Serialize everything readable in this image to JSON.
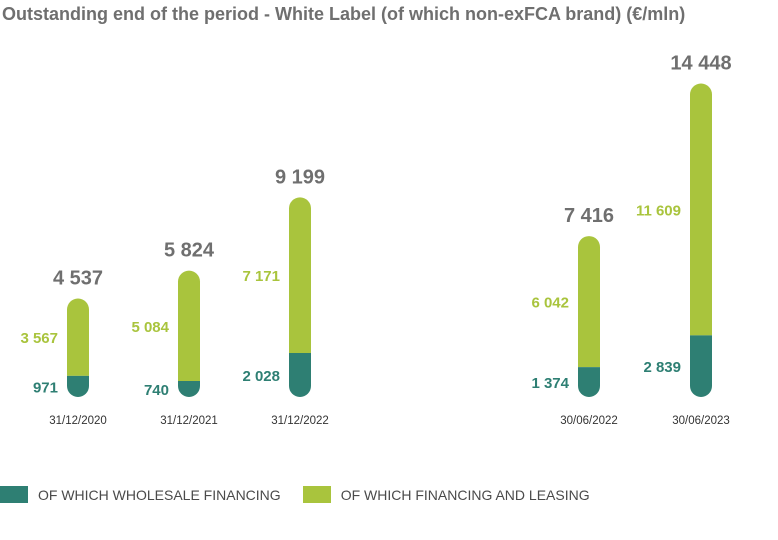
{
  "title": "Outstanding end of the period - White Label (of which non-exFCA brand) (€/mln)",
  "colors": {
    "wholesale": "#2e7f73",
    "financing": "#a9c43d",
    "total_text": "#6f6f6f"
  },
  "legend": {
    "wholesale": "OF WHICH WHOLESALE FINANCING",
    "financing": "OF WHICH FINANCING AND LEASING"
  },
  "chart_data": {
    "type": "bar",
    "stacked": true,
    "categories": [
      "31/12/2020",
      "31/12/2021",
      "31/12/2022",
      "30/06/2022",
      "30/06/2023"
    ],
    "series": [
      {
        "name": "OF WHICH WHOLESALE FINANCING",
        "values": [
          971,
          740,
          2028,
          1374,
          2839
        ],
        "labels": [
          "971",
          "740",
          "2 028",
          "1 374",
          "2 839"
        ]
      },
      {
        "name": "OF WHICH FINANCING AND LEASING",
        "values": [
          3567,
          5084,
          7171,
          6042,
          11609
        ],
        "labels": [
          "3 567",
          "5 084",
          "7 171",
          "6 042",
          "11 609"
        ]
      }
    ],
    "totals": [
      4537,
      5824,
      9199,
      7416,
      14448
    ],
    "total_labels": [
      "4 537",
      "5 824",
      "9 199",
      "7 416",
      "14 448"
    ],
    "legend_position": "bottom"
  }
}
